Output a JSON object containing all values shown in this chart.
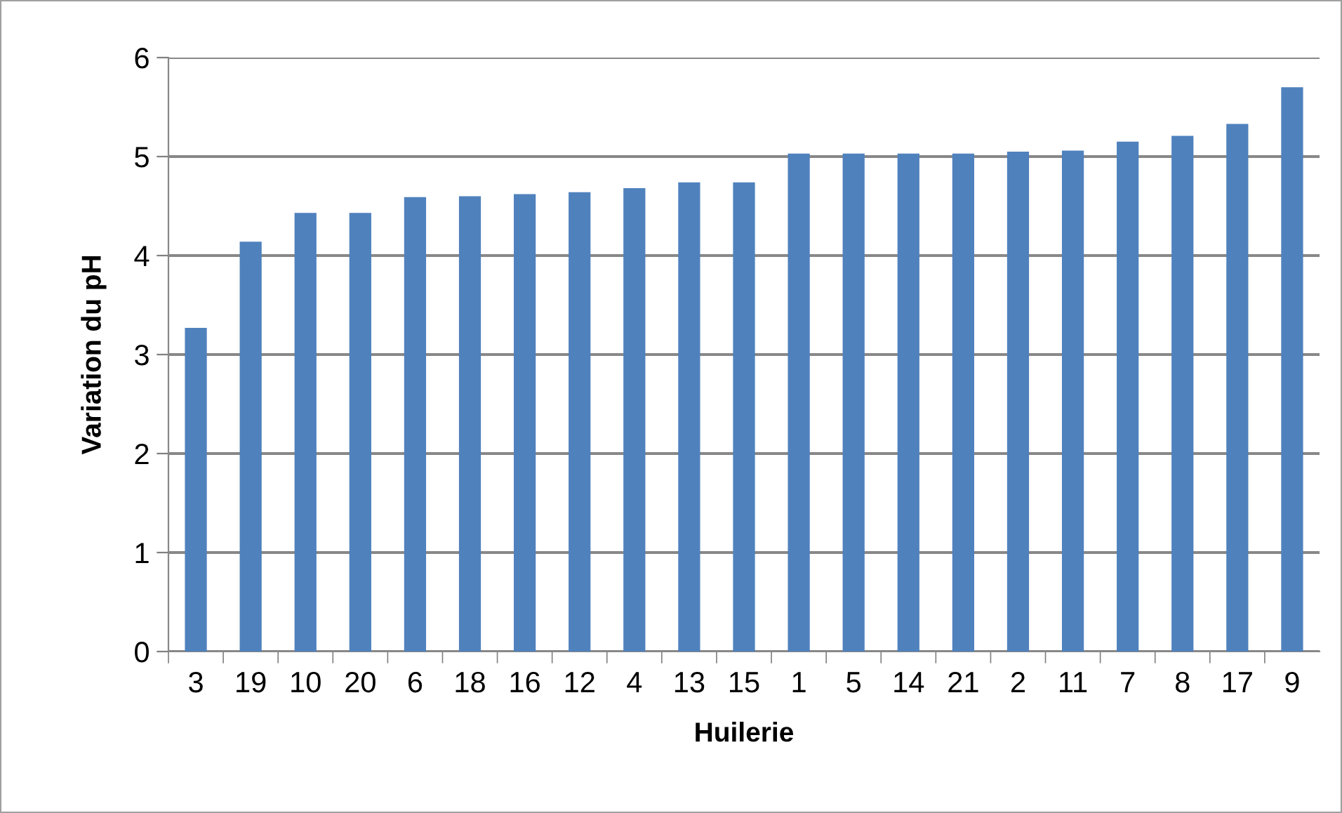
{
  "chart_data": {
    "type": "bar",
    "xlabel": "Huilerie",
    "ylabel": "Variation du pH",
    "categories": [
      "3",
      "19",
      "10",
      "20",
      "6",
      "18",
      "16",
      "12",
      "4",
      "13",
      "15",
      "1",
      "5",
      "14",
      "21",
      "2",
      "11",
      "7",
      "8",
      "17",
      "9"
    ],
    "values": [
      3.27,
      4.14,
      4.43,
      4.43,
      4.59,
      4.6,
      4.62,
      4.64,
      4.68,
      4.74,
      4.74,
      5.03,
      5.03,
      5.03,
      5.03,
      5.05,
      5.06,
      5.15,
      5.21,
      5.33,
      5.7
    ],
    "color": "#4f81bd",
    "ylim": [
      0,
      6
    ],
    "yticks": [
      0,
      1,
      2,
      3,
      4,
      5,
      6
    ],
    "grid": "y",
    "legend": false
  }
}
